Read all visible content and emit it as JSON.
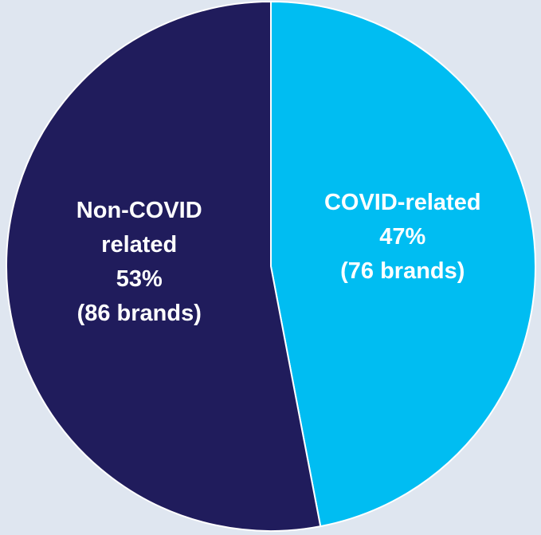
{
  "chart_data": {
    "type": "pie",
    "categories": [
      "COVID-related",
      "Non-COVID related"
    ],
    "values": [
      47,
      53
    ],
    "value_labels": [
      "47%",
      "53%"
    ],
    "brand_labels": [
      "(76 brands)",
      "(86 brands)"
    ],
    "colors": [
      "#00bdf2",
      "#201c5c"
    ]
  }
}
